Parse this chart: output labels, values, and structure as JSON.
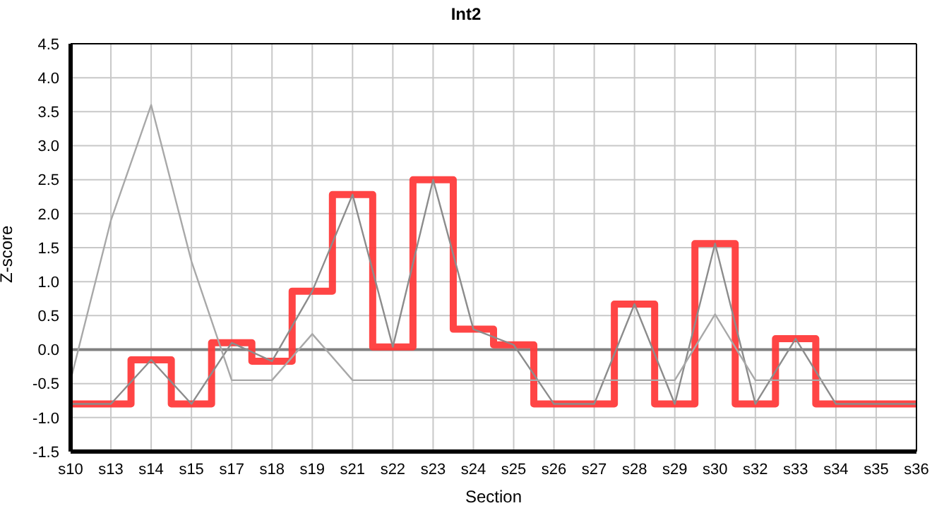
{
  "chart_data": {
    "type": "line",
    "title": "Int2",
    "xlabel": "Section",
    "ylabel": "Z-score",
    "categories": [
      "s10",
      "s13",
      "s14",
      "s15",
      "s17",
      "s18",
      "s19",
      "s21",
      "s22",
      "s23",
      "s24",
      "s25",
      "s26",
      "s27",
      "s28",
      "s29",
      "s30",
      "s32",
      "s33",
      "s34",
      "s35",
      "s36"
    ],
    "series": [
      {
        "type": "step",
        "color": "#ff3b3b",
        "values": [
          -0.8,
          -0.8,
          -0.15,
          -0.8,
          0.1,
          -0.17,
          0.86,
          2.28,
          0.04,
          2.5,
          0.3,
          0.07,
          -0.8,
          -0.8,
          0.67,
          -0.8,
          1.56,
          -0.8,
          0.16,
          -0.8,
          -0.8,
          -0.8
        ]
      },
      {
        "color": "#8c8c8c",
        "values": [
          -0.8,
          -0.8,
          -0.15,
          -0.8,
          0.1,
          -0.17,
          0.86,
          2.28,
          0.04,
          2.5,
          0.3,
          0.07,
          -0.8,
          -0.8,
          0.67,
          -0.8,
          1.56,
          -0.8,
          0.16,
          -0.8,
          -0.8,
          -0.8
        ]
      },
      {
        "color": "#a8a8a8",
        "values": [
          -0.45,
          1.9,
          3.6,
          1.3,
          -0.45,
          -0.45,
          0.23,
          -0.45,
          -0.45,
          -0.45,
          -0.45,
          -0.45,
          -0.45,
          -0.45,
          -0.45,
          -0.45,
          0.52,
          -0.45,
          -0.45,
          -0.45,
          -0.45,
          -0.45
        ]
      }
    ],
    "ylim": [
      -1.5,
      4.5
    ],
    "yticks": [
      -1.5,
      {
        "value": -1,
        "label": "-1.0"
      },
      -0.5,
      {
        "value": 0,
        "label": "0.0"
      },
      0.5,
      {
        "value": 1,
        "label": "1.0"
      },
      1.5,
      {
        "value": 2,
        "label": "2.0"
      },
      2.5,
      {
        "value": 3,
        "label": "3.0"
      },
      3.5,
      {
        "value": 4,
        "label": "4.0"
      },
      4.5
    ],
    "ref_lines": [
      {
        "axis": "y",
        "value": 0,
        "color": "#808080"
      }
    ],
    "grid": true,
    "legend": false,
    "marker": "none",
    "line_style": "solid"
  }
}
